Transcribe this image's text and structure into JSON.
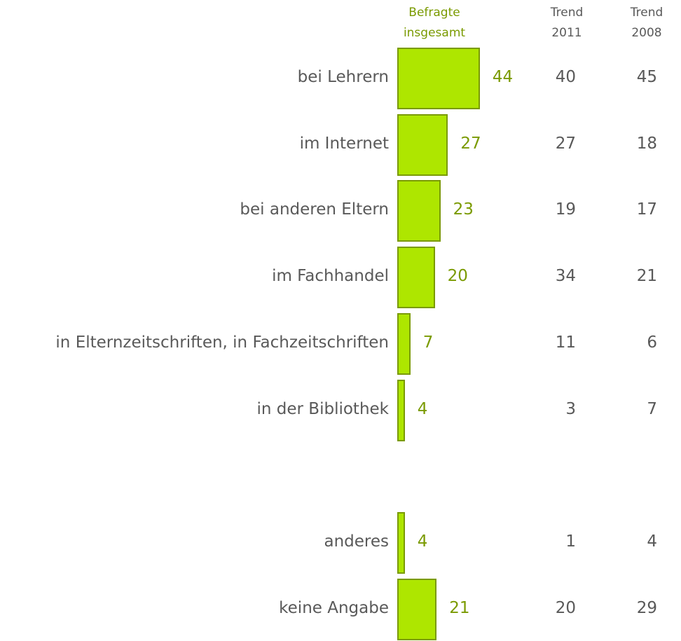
{
  "chart_data": {
    "type": "bar",
    "orientation": "horizontal",
    "categories": [
      "bei Lehrern",
      "im Internet",
      "bei anderen Eltern",
      "im Fachhandel",
      "in Elternzeitschriften, in Fachzeitschriften",
      "in der Bibliothek",
      null,
      "anderes",
      "keine Angabe"
    ],
    "series": [
      {
        "name": "Befragte insgesamt",
        "color": "#aee600",
        "values": [
          44,
          27,
          23,
          20,
          7,
          4,
          null,
          4,
          21
        ]
      },
      {
        "name": "Trend 2011",
        "values": [
          40,
          27,
          19,
          34,
          11,
          3,
          null,
          1,
          20
        ]
      },
      {
        "name": "Trend 2008",
        "values": [
          45,
          18,
          17,
          21,
          6,
          7,
          null,
          4,
          29
        ]
      }
    ]
  }
}
